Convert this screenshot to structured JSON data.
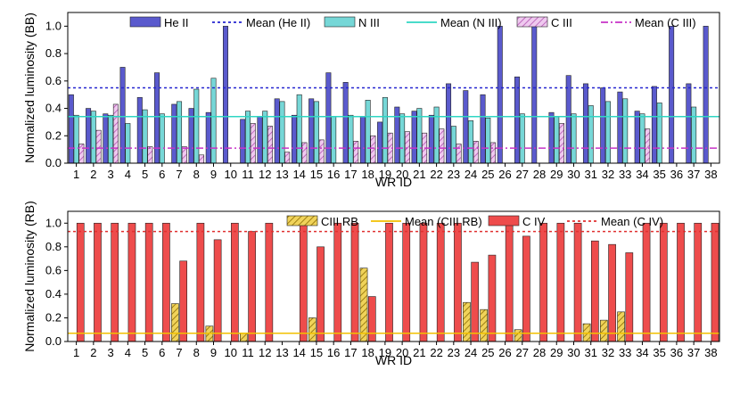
{
  "chart_data": [
    {
      "type": "bar",
      "xlabel": "WR ID",
      "ylabel": "Normalized luminosity (BB)",
      "ylim": [
        0,
        1.1
      ],
      "yticks": [
        "0.0",
        "0.2",
        "0.4",
        "0.6",
        "0.8",
        "1.0"
      ],
      "categories": [
        "1",
        "2",
        "3",
        "4",
        "5",
        "6",
        "7",
        "8",
        "9",
        "10",
        "11",
        "12",
        "13",
        "14",
        "15",
        "16",
        "17",
        "18",
        "19",
        "20",
        "21",
        "22",
        "23",
        "24",
        "25",
        "26",
        "27",
        "28",
        "29",
        "30",
        "31",
        "32",
        "33",
        "34",
        "35",
        "36",
        "37",
        "38"
      ],
      "series": [
        {
          "name": "He II",
          "color": "#5a5acd",
          "pattern": "solid",
          "values": [
            0.5,
            0.4,
            0.36,
            0.7,
            0.48,
            0.66,
            0.43,
            0.4,
            0.37,
            1.0,
            0.32,
            0.34,
            0.47,
            0.35,
            0.47,
            0.66,
            0.59,
            0.34,
            0.3,
            0.41,
            0.38,
            0.35,
            0.58,
            0.53,
            0.5,
            1.0,
            0.63,
            1.0,
            0.37,
            0.64,
            0.58,
            0.55,
            0.52,
            0.38,
            0.56,
            1.0,
            0.58,
            1.0
          ]
        },
        {
          "name": "N III",
          "color": "#76d7d7",
          "pattern": "solid",
          "values": [
            0.35,
            0.38,
            0.35,
            0.29,
            0.39,
            0.36,
            0.45,
            0.54,
            0.62,
            null,
            0.38,
            0.38,
            0.45,
            0.5,
            0.45,
            0.34,
            0.35,
            0.46,
            0.48,
            0.36,
            0.4,
            0.41,
            0.27,
            0.31,
            0.33,
            null,
            0.36,
            null,
            0.34,
            0.36,
            0.42,
            0.45,
            0.47,
            0.36,
            0.44,
            null,
            0.41,
            null
          ]
        },
        {
          "name": "C III",
          "color": "#e0a3e0",
          "pattern": "hatch",
          "values": [
            0.14,
            0.24,
            0.43,
            null,
            0.12,
            null,
            0.12,
            0.06,
            null,
            null,
            0.29,
            0.27,
            0.08,
            0.15,
            0.17,
            null,
            0.16,
            0.2,
            0.22,
            0.23,
            0.22,
            0.25,
            0.14,
            0.16,
            0.15,
            null,
            null,
            null,
            0.29,
            null,
            null,
            null,
            null,
            0.25,
            null,
            null,
            null,
            null
          ]
        }
      ],
      "reference_lines": [
        {
          "name": "Mean (He II)",
          "value": 0.55,
          "color": "#2525d0",
          "style": "dotted"
        },
        {
          "name": "Mean (N III)",
          "value": 0.34,
          "color": "#2fd6c3",
          "style": "solid"
        },
        {
          "name": "Mean (C III)",
          "value": 0.11,
          "color": "#c733c7",
          "style": "dashdot"
        }
      ],
      "legend": [
        {
          "name": "He II",
          "kind": "bar",
          "color": "#5a5acd",
          "pattern": "solid"
        },
        {
          "name": "Mean (He II)",
          "kind": "line",
          "color": "#2525d0",
          "style": "dotted"
        },
        {
          "name": "N III",
          "kind": "bar",
          "color": "#76d7d7",
          "pattern": "solid"
        },
        {
          "name": "Mean (N III)",
          "kind": "line",
          "color": "#2fd6c3",
          "style": "solid"
        },
        {
          "name": "C III",
          "kind": "bar",
          "color": "#e0a3e0",
          "pattern": "hatch"
        },
        {
          "name": "Mean (C III)",
          "kind": "line",
          "color": "#c733c7",
          "style": "dashdot"
        }
      ],
      "legend_position": "top"
    },
    {
      "type": "bar",
      "xlabel": "WR ID",
      "ylabel": "Normalized luminosity (RB)",
      "ylim": [
        0,
        1.1
      ],
      "yticks": [
        "0.0",
        "0.2",
        "0.4",
        "0.6",
        "0.8",
        "1.0"
      ],
      "categories": [
        "1",
        "2",
        "3",
        "4",
        "5",
        "6",
        "7",
        "8",
        "9",
        "10",
        "11",
        "12",
        "13",
        "14",
        "15",
        "16",
        "17",
        "18",
        "19",
        "20",
        "21",
        "22",
        "23",
        "24",
        "25",
        "26",
        "27",
        "28",
        "29",
        "30",
        "31",
        "32",
        "33",
        "34",
        "35",
        "36",
        "37",
        "38"
      ],
      "series": [
        {
          "name": "CIII RB",
          "color": "#e6c23a",
          "pattern": "hatch",
          "values": [
            null,
            null,
            null,
            null,
            null,
            null,
            0.32,
            null,
            0.13,
            null,
            0.07,
            null,
            null,
            null,
            0.2,
            null,
            null,
            0.62,
            null,
            null,
            null,
            null,
            null,
            0.33,
            0.27,
            null,
            0.1,
            null,
            null,
            null,
            0.15,
            0.18,
            0.25,
            null,
            null,
            null,
            null,
            null
          ]
        },
        {
          "name": "C IV",
          "color": "#ee4c4c",
          "pattern": "solid",
          "values": [
            1.0,
            1.0,
            1.0,
            1.0,
            1.0,
            1.0,
            0.68,
            1.0,
            0.86,
            1.0,
            0.93,
            1.0,
            null,
            1.0,
            0.8,
            1.0,
            1.0,
            0.38,
            1.0,
            1.0,
            1.0,
            1.0,
            1.0,
            0.67,
            0.73,
            1.0,
            0.89,
            1.0,
            1.0,
            1.0,
            0.85,
            0.82,
            0.75,
            1.0,
            1.0,
            1.0,
            1.0,
            1.0
          ]
        }
      ],
      "reference_lines": [
        {
          "name": "Mean (CIII RB)",
          "value": 0.07,
          "color": "#f2c100",
          "style": "solid"
        },
        {
          "name": "Mean (C IV)",
          "value": 0.93,
          "color": "#e03030",
          "style": "dotted"
        }
      ],
      "legend": [
        {
          "name": "CIII RB",
          "kind": "bar",
          "color": "#e6c23a",
          "pattern": "hatch"
        },
        {
          "name": "Mean (CIII RB)",
          "kind": "line",
          "color": "#f2c100",
          "style": "solid"
        },
        {
          "name": "C IV",
          "kind": "bar",
          "color": "#ee4c4c",
          "pattern": "solid"
        },
        {
          "name": "Mean (C IV)",
          "kind": "line",
          "color": "#e03030",
          "style": "dotted"
        }
      ],
      "legend_position": "top"
    }
  ]
}
